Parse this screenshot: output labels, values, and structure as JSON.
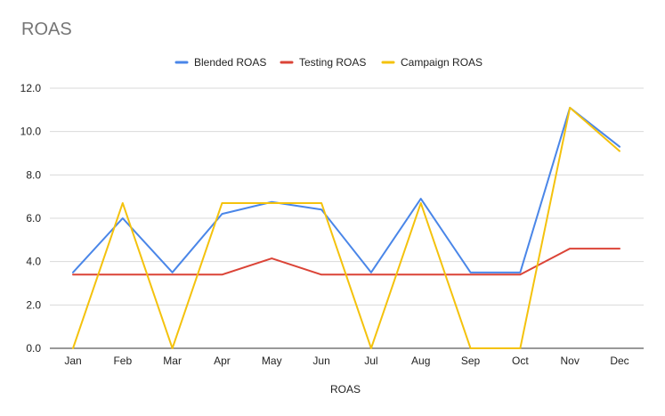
{
  "chart_data": {
    "type": "line",
    "title": "ROAS",
    "xlabel": "ROAS",
    "ylabel": "",
    "ylim": [
      0,
      12
    ],
    "yticks": [
      "0.0",
      "2.0",
      "4.0",
      "6.0",
      "8.0",
      "10.0",
      "12.0"
    ],
    "grid": true,
    "legend_position": "top",
    "categories": [
      "Jan",
      "Feb",
      "Mar",
      "Apr",
      "May",
      "Jun",
      "Jul",
      "Aug",
      "Sep",
      "Oct",
      "Nov",
      "Dec"
    ],
    "series": [
      {
        "name": "Blended ROAS",
        "color": "#4a86e8",
        "values": [
          3.5,
          6.0,
          3.5,
          6.2,
          6.75,
          6.4,
          3.5,
          6.9,
          3.5,
          3.5,
          11.1,
          9.3
        ]
      },
      {
        "name": "Testing ROAS",
        "color": "#db4437",
        "values": [
          3.4,
          3.4,
          3.4,
          3.4,
          4.15,
          3.4,
          3.4,
          3.4,
          3.4,
          3.4,
          4.6,
          4.6
        ]
      },
      {
        "name": "Campaign ROAS",
        "color": "#f4c20d",
        "values": [
          0,
          6.7,
          0,
          6.7,
          6.7,
          6.7,
          0,
          6.7,
          0,
          0,
          11.1,
          9.1
        ]
      }
    ]
  }
}
